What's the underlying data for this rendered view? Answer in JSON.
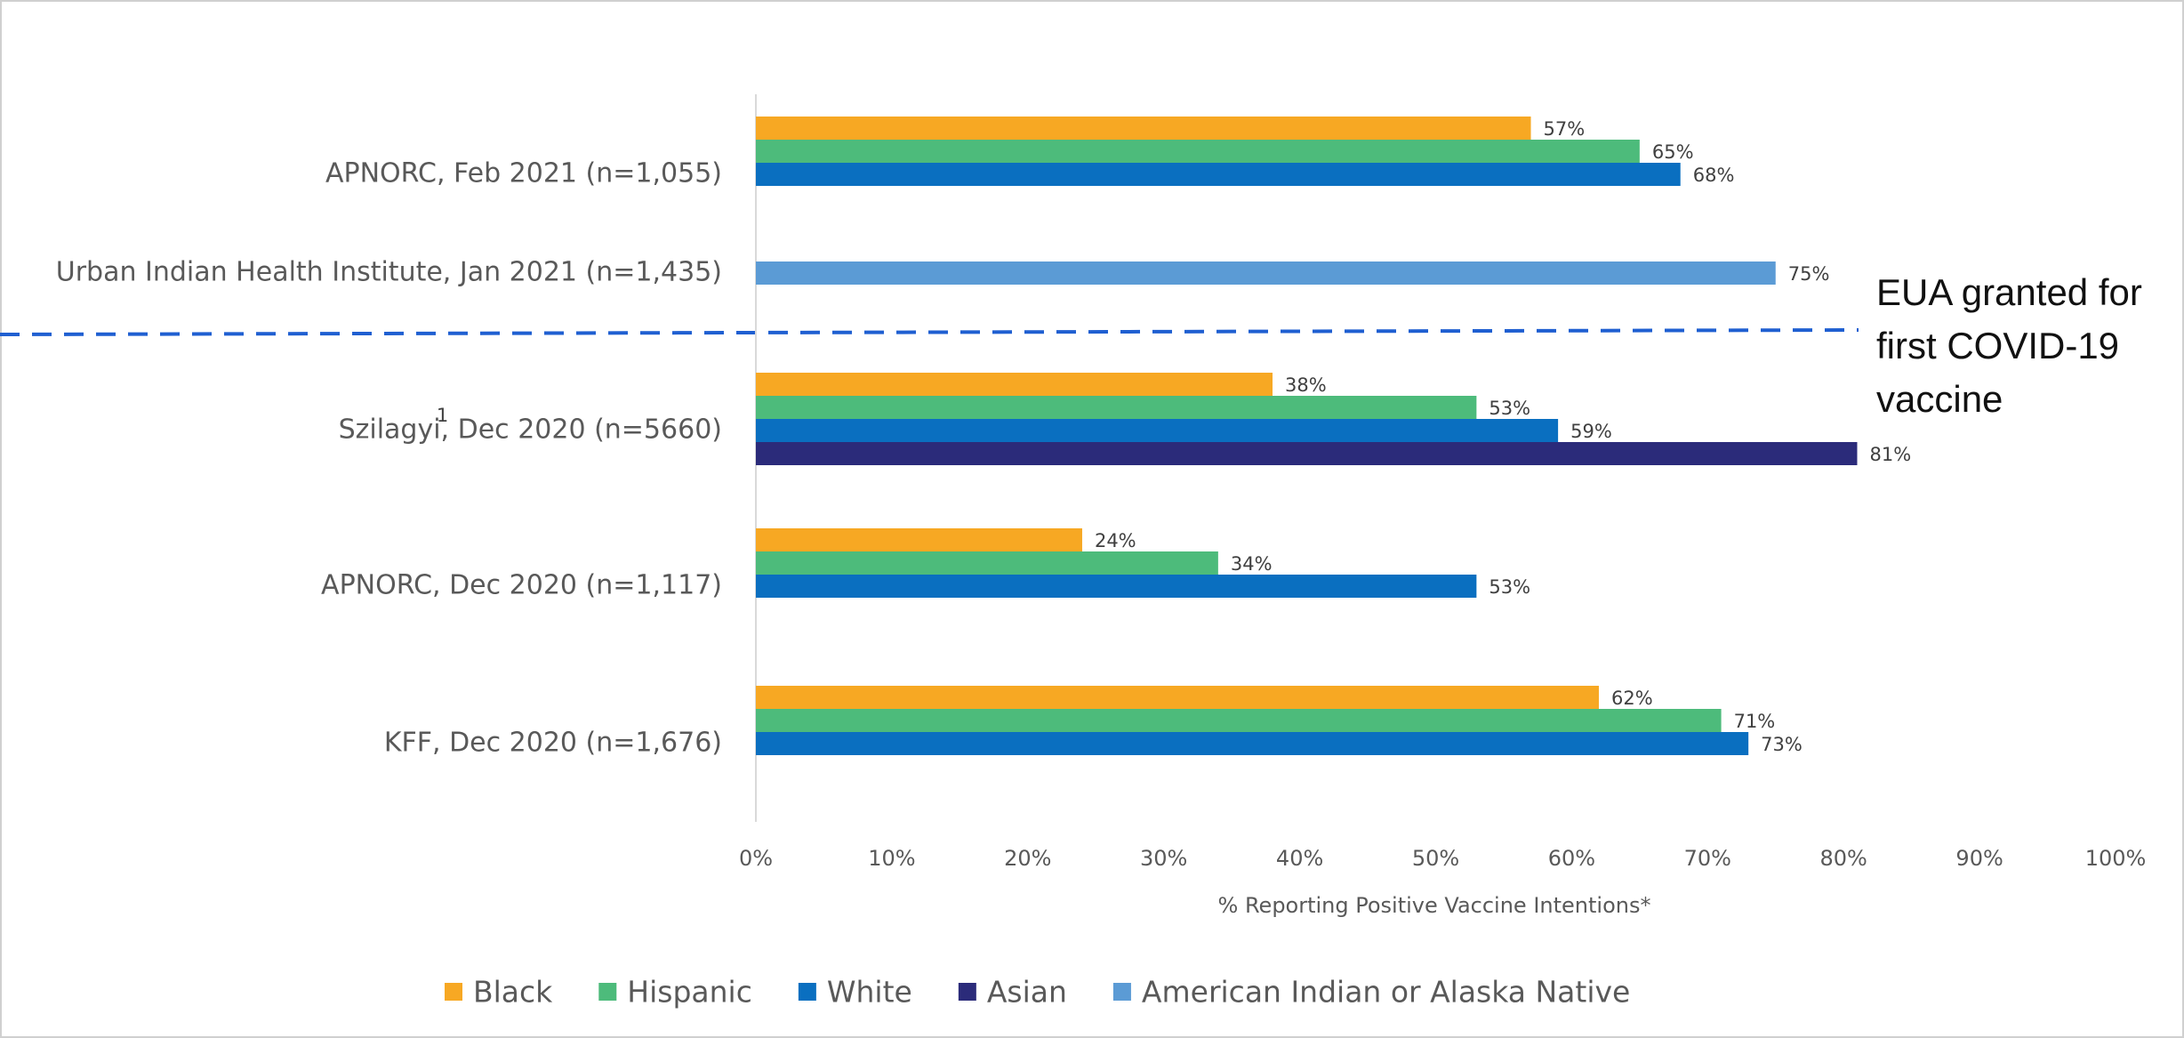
{
  "chart_data": {
    "type": "bar",
    "orientation": "horizontal",
    "categories": [
      "APNORC, Feb 2021 (n=1,055)",
      "Urban Indian Health Institute, Jan 2021 (n=1,435)",
      "Szilagyi, Dec 2020 (n=5660)",
      "APNORC, Dec 2020 (n=1,117)",
      "KFF, Dec 2020 (n=1,676)"
    ],
    "category_superscripts": [
      null,
      null,
      "1",
      null,
      null
    ],
    "series": [
      {
        "name": "Black",
        "color": "#f7a823",
        "values": [
          57,
          null,
          38,
          24,
          62
        ],
        "value_labels": [
          "57%",
          null,
          "38%",
          "24%",
          "62%"
        ]
      },
      {
        "name": "Hispanic",
        "color": "#4dbb7b",
        "values": [
          65,
          null,
          53,
          34,
          71
        ],
        "value_labels": [
          "65%",
          null,
          "53%",
          "34%",
          "71%"
        ]
      },
      {
        "name": "White",
        "color": "#0a6fc0",
        "values": [
          68,
          null,
          59,
          53,
          73
        ],
        "value_labels": [
          "68%",
          null,
          "59%",
          "53%",
          "73%"
        ]
      },
      {
        "name": "Asian",
        "color": "#2b2b7a",
        "values": [
          null,
          null,
          81,
          null,
          null
        ],
        "value_labels": [
          null,
          null,
          "81%",
          null,
          null
        ]
      },
      {
        "name": "American Indian or Alaska Native",
        "color": "#5b9bd5",
        "values": [
          null,
          75,
          null,
          null,
          null
        ],
        "value_labels": [
          null,
          "75%",
          null,
          null,
          null
        ]
      }
    ],
    "xlim": [
      0,
      100
    ],
    "xticks": [
      {
        "value": 0,
        "label": "0%"
      },
      {
        "value": 10,
        "label": "10%"
      },
      {
        "value": 20,
        "label": "20%"
      },
      {
        "value": 30,
        "label": "30%"
      },
      {
        "value": 40,
        "label": "40%"
      },
      {
        "value": 50,
        "label": "50%"
      },
      {
        "value": 60,
        "label": "60%"
      },
      {
        "value": 70,
        "label": "70%"
      },
      {
        "value": 80,
        "label": "80%"
      },
      {
        "value": 90,
        "label": "90%"
      },
      {
        "value": 100,
        "label": "100%"
      }
    ],
    "x_label": "% Reporting Positive Vaccine Intentions*",
    "annotation_lines": [
      "EUA granted for",
      "first COVID-19",
      "vaccine"
    ],
    "legend": "bottom"
  }
}
